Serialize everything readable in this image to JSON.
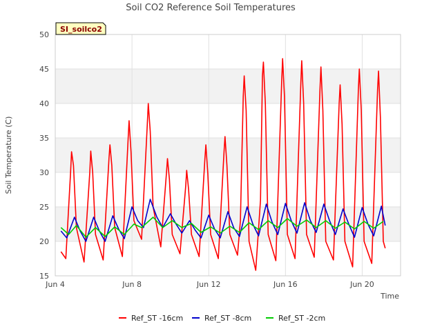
{
  "chart_data": {
    "type": "line",
    "title": "Soil CO2 Reference Soil Temperatures",
    "xlabel": "Time",
    "ylabel": "Soil Temperature (C)",
    "station_label": "SI_soilco2",
    "ylim": [
      15,
      50
    ],
    "yticks": [
      15,
      20,
      25,
      30,
      35,
      40,
      45,
      50
    ],
    "xlim_days": [
      4.0,
      22.0
    ],
    "xticks": [
      {
        "day": 4,
        "label": "Jun 4"
      },
      {
        "day": 8,
        "label": "Jun 8"
      },
      {
        "day": 12,
        "label": "Jun 12"
      },
      {
        "day": 16,
        "label": "Jun 16"
      },
      {
        "day": 20,
        "label": "Jun 20"
      }
    ],
    "grid": true,
    "legend_position": "bottom",
    "series": [
      {
        "name": "Ref_ST -16cm",
        "color": "#ff0000",
        "day_peak": [
          [
            4.3,
            18.5
          ],
          [
            4.55,
            17.5
          ],
          [
            4.8,
            30.0
          ],
          [
            4.85,
            33.0
          ],
          [
            4.95,
            31.0
          ],
          [
            5.1,
            22.0
          ],
          [
            5.5,
            17.0
          ],
          [
            5.8,
            30.0
          ],
          [
            5.85,
            33.1
          ],
          [
            5.95,
            30.0
          ],
          [
            6.1,
            21.0
          ],
          [
            6.5,
            17.3
          ],
          [
            6.8,
            32.0
          ],
          [
            6.85,
            34.0
          ],
          [
            6.95,
            31.0
          ],
          [
            7.1,
            22.0
          ],
          [
            7.5,
            17.8
          ],
          [
            7.8,
            35.0
          ],
          [
            7.85,
            37.5
          ],
          [
            7.95,
            33.0
          ],
          [
            8.1,
            23.0
          ],
          [
            8.5,
            20.3
          ],
          [
            8.8,
            37.0
          ],
          [
            8.85,
            40.0
          ],
          [
            8.95,
            36.0
          ],
          [
            9.1,
            25.0
          ],
          [
            9.5,
            19.2
          ],
          [
            9.8,
            30.0
          ],
          [
            9.85,
            32.0
          ],
          [
            9.95,
            29.0
          ],
          [
            10.1,
            21.0
          ],
          [
            10.5,
            18.2
          ],
          [
            10.8,
            28.0
          ],
          [
            10.85,
            30.3
          ],
          [
            10.95,
            27.5
          ],
          [
            11.1,
            21.0
          ],
          [
            11.5,
            17.8
          ],
          [
            11.8,
            32.0
          ],
          [
            11.85,
            34.0
          ],
          [
            11.95,
            30.0
          ],
          [
            12.1,
            21.0
          ],
          [
            12.5,
            17.5
          ],
          [
            12.8,
            33.0
          ],
          [
            12.85,
            35.2
          ],
          [
            12.95,
            31.0
          ],
          [
            13.1,
            21.0
          ],
          [
            13.5,
            18.0
          ],
          [
            13.65,
            23.0
          ],
          [
            13.8,
            41.0
          ],
          [
            13.85,
            44.0
          ],
          [
            13.95,
            39.0
          ],
          [
            14.1,
            20.0
          ],
          [
            14.45,
            15.8
          ],
          [
            14.7,
            26.0
          ],
          [
            14.8,
            44.0
          ],
          [
            14.85,
            46.0
          ],
          [
            14.95,
            40.0
          ],
          [
            15.1,
            21.0
          ],
          [
            15.5,
            17.2
          ],
          [
            15.8,
            43.0
          ],
          [
            15.85,
            46.5
          ],
          [
            15.95,
            41.0
          ],
          [
            16.1,
            21.0
          ],
          [
            16.5,
            17.5
          ],
          [
            16.8,
            43.0
          ],
          [
            16.85,
            46.2
          ],
          [
            16.95,
            40.0
          ],
          [
            17.1,
            21.0
          ],
          [
            17.5,
            17.7
          ],
          [
            17.8,
            42.0
          ],
          [
            17.85,
            45.3
          ],
          [
            17.95,
            39.0
          ],
          [
            18.1,
            20.0
          ],
          [
            18.5,
            17.3
          ],
          [
            18.8,
            40.0
          ],
          [
            18.85,
            42.7
          ],
          [
            18.95,
            37.0
          ],
          [
            19.1,
            20.0
          ],
          [
            19.5,
            16.3
          ],
          [
            19.8,
            42.0
          ],
          [
            19.85,
            45.0
          ],
          [
            19.95,
            39.0
          ],
          [
            20.1,
            20.0
          ],
          [
            20.5,
            16.8
          ],
          [
            20.8,
            42.0
          ],
          [
            20.85,
            44.7
          ],
          [
            20.95,
            38.0
          ],
          [
            21.1,
            20.0
          ],
          [
            21.2,
            19.0
          ]
        ]
      },
      {
        "name": "Ref_ST -8cm",
        "color": "#0000cc",
        "day_peak": [
          [
            4.3,
            21.5
          ],
          [
            4.6,
            20.5
          ],
          [
            5.0,
            23.5
          ],
          [
            5.3,
            21.5
          ],
          [
            5.6,
            20.0
          ],
          [
            6.0,
            23.5
          ],
          [
            6.3,
            21.5
          ],
          [
            6.6,
            20.0
          ],
          [
            7.0,
            23.7
          ],
          [
            7.3,
            21.8
          ],
          [
            7.6,
            20.4
          ],
          [
            8.0,
            25.0
          ],
          [
            8.3,
            23.0
          ],
          [
            8.6,
            22.0
          ],
          [
            8.95,
            26.1
          ],
          [
            9.3,
            23.5
          ],
          [
            9.6,
            22.0
          ],
          [
            10.0,
            24.0
          ],
          [
            10.3,
            22.5
          ],
          [
            10.6,
            21.2
          ],
          [
            11.0,
            23.0
          ],
          [
            11.3,
            21.6
          ],
          [
            11.6,
            20.5
          ],
          [
            12.0,
            23.8
          ],
          [
            12.3,
            21.8
          ],
          [
            12.6,
            20.5
          ],
          [
            13.0,
            24.3
          ],
          [
            13.3,
            22.0
          ],
          [
            13.6,
            20.7
          ],
          [
            14.0,
            25.0
          ],
          [
            14.3,
            22.5
          ],
          [
            14.6,
            20.8
          ],
          [
            15.0,
            25.4
          ],
          [
            15.3,
            22.8
          ],
          [
            15.6,
            21.0
          ],
          [
            16.0,
            25.5
          ],
          [
            16.3,
            23.0
          ],
          [
            16.6,
            21.2
          ],
          [
            17.0,
            25.6
          ],
          [
            17.3,
            23.0
          ],
          [
            17.6,
            21.3
          ],
          [
            18.0,
            25.4
          ],
          [
            18.3,
            23.0
          ],
          [
            18.6,
            21.0
          ],
          [
            19.0,
            24.7
          ],
          [
            19.3,
            22.5
          ],
          [
            19.6,
            20.6
          ],
          [
            20.0,
            24.9
          ],
          [
            20.3,
            22.5
          ],
          [
            20.6,
            20.8
          ],
          [
            21.0,
            25.1
          ],
          [
            21.2,
            22.3
          ]
        ]
      },
      {
        "name": "Ref_ST -2cm",
        "color": "#00cc00",
        "day_peak": [
          [
            4.3,
            22.0
          ],
          [
            4.7,
            21.0
          ],
          [
            5.1,
            22.3
          ],
          [
            5.6,
            20.6
          ],
          [
            6.1,
            22.0
          ],
          [
            6.6,
            20.7
          ],
          [
            7.1,
            22.1
          ],
          [
            7.6,
            21.0
          ],
          [
            8.1,
            22.5
          ],
          [
            8.5,
            22.0
          ],
          [
            9.1,
            23.5
          ],
          [
            9.6,
            22.0
          ],
          [
            10.1,
            23.0
          ],
          [
            10.6,
            22.0
          ],
          [
            11.1,
            22.6
          ],
          [
            11.6,
            21.3
          ],
          [
            12.1,
            22.1
          ],
          [
            12.6,
            21.2
          ],
          [
            13.1,
            22.2
          ],
          [
            13.6,
            21.3
          ],
          [
            14.1,
            22.7
          ],
          [
            14.6,
            21.7
          ],
          [
            15.1,
            23.0
          ],
          [
            15.6,
            22.0
          ],
          [
            16.1,
            23.3
          ],
          [
            16.6,
            22.2
          ],
          [
            17.1,
            23.1
          ],
          [
            17.6,
            22.0
          ],
          [
            18.1,
            23.0
          ],
          [
            18.6,
            21.9
          ],
          [
            19.1,
            22.8
          ],
          [
            19.6,
            21.8
          ],
          [
            20.1,
            22.9
          ],
          [
            20.6,
            21.9
          ],
          [
            21.1,
            22.9
          ]
        ]
      }
    ]
  }
}
